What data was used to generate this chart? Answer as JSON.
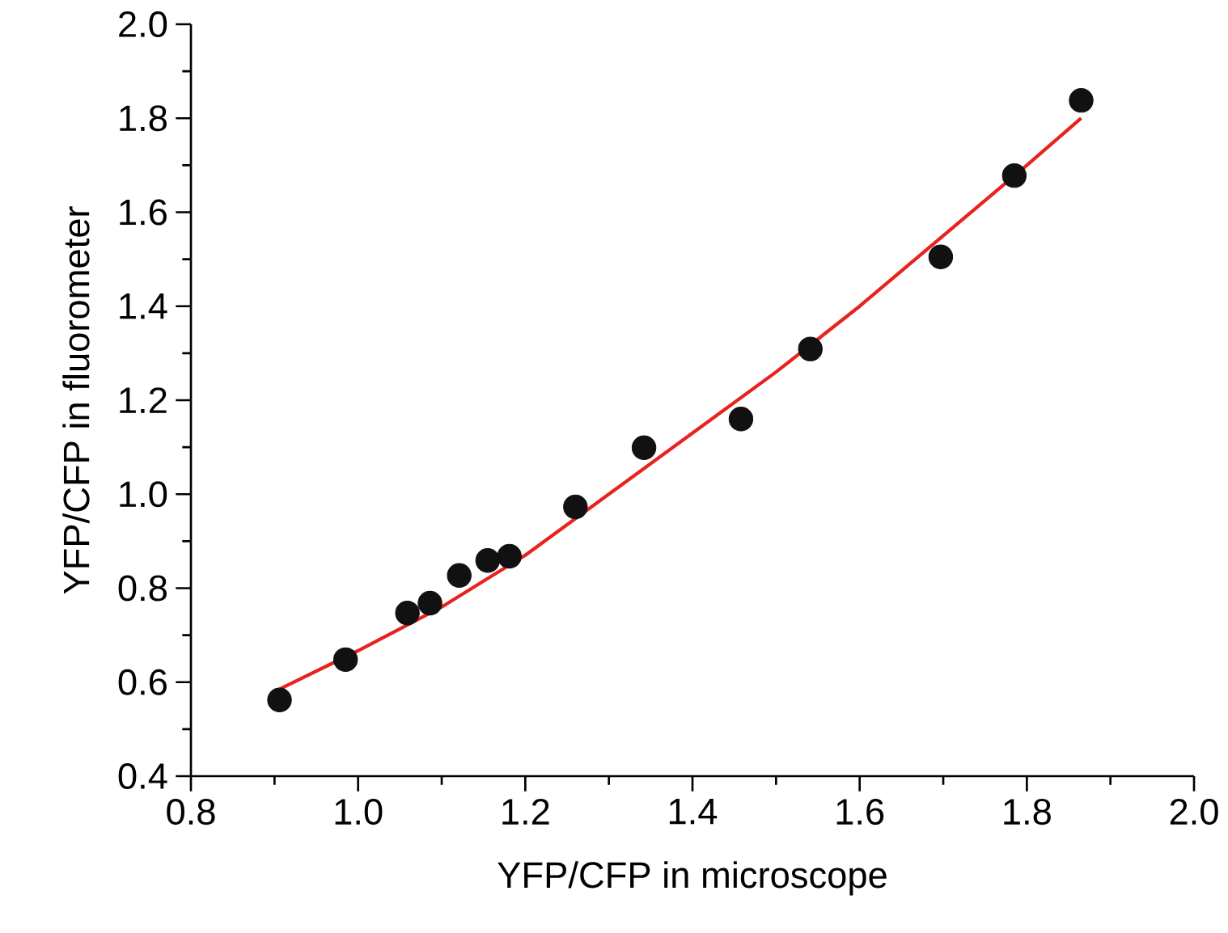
{
  "chart_data": {
    "type": "scatter",
    "xlabel": "YFP/CFP in microscope",
    "ylabel": "YFP/CFP in fluorometer",
    "xlim": [
      0.8,
      2.0
    ],
    "ylim": [
      0.4,
      2.0
    ],
    "xticks": [
      {
        "value": 0.8,
        "label": "0.8"
      },
      {
        "value": 1.0,
        "label": "1.0"
      },
      {
        "value": 1.2,
        "label": "1.2"
      },
      {
        "value": 1.4,
        "label": "1.4"
      },
      {
        "value": 1.6,
        "label": "1.6"
      },
      {
        "value": 1.8,
        "label": "1.8"
      },
      {
        "value": 2.0,
        "label": "2.0"
      }
    ],
    "yticks": [
      {
        "value": 0.4,
        "label": "0.4"
      },
      {
        "value": 0.6,
        "label": "0.6"
      },
      {
        "value": 0.8,
        "label": "0.8"
      },
      {
        "value": 1.0,
        "label": "1.0"
      },
      {
        "value": 1.2,
        "label": "1.2"
      },
      {
        "value": 1.4,
        "label": "1.4"
      },
      {
        "value": 1.6,
        "label": "1.6"
      },
      {
        "value": 1.8,
        "label": "1.8"
      },
      {
        "value": 2.0,
        "label": "2.0"
      }
    ],
    "series": [
      {
        "marker": "circle",
        "color": "#111111",
        "x": [
          0.906,
          0.985,
          1.059,
          1.086,
          1.121,
          1.155,
          1.181,
          1.26,
          1.342,
          1.458,
          1.541,
          1.697,
          1.785,
          1.865
        ],
        "values": [
          0.562,
          0.648,
          0.747,
          0.768,
          0.827,
          0.859,
          0.868,
          0.973,
          1.099,
          1.16,
          1.309,
          1.505,
          1.678,
          1.838
        ]
      },
      {
        "type": "line",
        "marker": "none",
        "line_style": "solid",
        "color": "#e8231f",
        "x": [
          0.906,
          1.0,
          1.1,
          1.2,
          1.3,
          1.4,
          1.5,
          1.6,
          1.7,
          1.8,
          1.865
        ],
        "values": [
          0.585,
          0.667,
          0.76,
          0.87,
          1.0,
          1.13,
          1.26,
          1.4,
          1.55,
          1.7,
          1.8
        ]
      }
    ]
  }
}
